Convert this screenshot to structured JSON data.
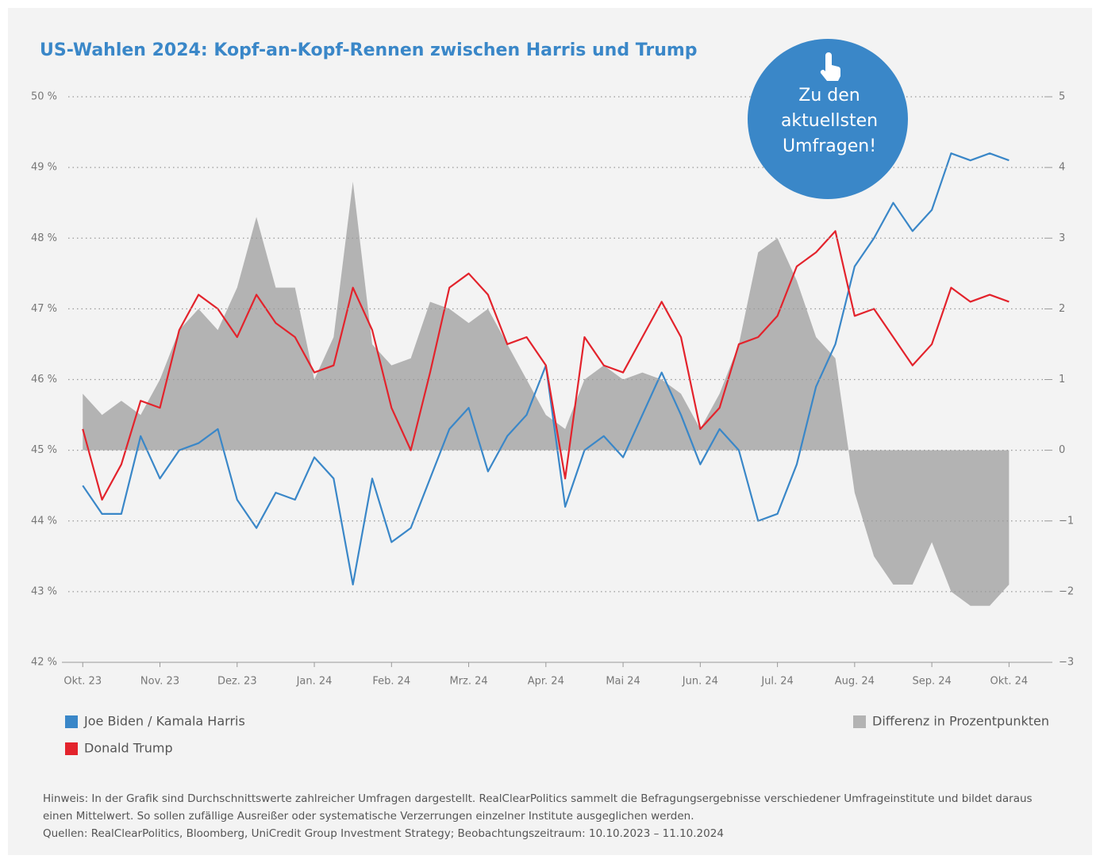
{
  "chart_data": {
    "type": "line",
    "title": "US-Wahlen 2024: Kopf-an-Kopf-Rennen zwischen Harris und Trump",
    "button_lines": [
      "Zu den",
      "aktuellsten",
      "Umfragen!"
    ],
    "x": [
      0,
      0.25,
      0.5,
      0.75,
      1,
      1.25,
      1.5,
      1.75,
      2,
      2.25,
      2.5,
      2.75,
      3,
      3.25,
      3.5,
      3.75,
      4,
      4.25,
      4.5,
      4.75,
      5,
      5.25,
      5.5,
      5.75,
      6,
      6.25,
      6.5,
      6.75,
      7,
      7.25,
      7.5,
      7.75,
      8,
      8.25,
      8.5,
      8.75,
      9,
      9.25,
      9.5,
      9.75,
      10,
      10.25,
      10.5,
      10.75,
      11,
      11.25,
      11.5,
      11.75,
      12
    ],
    "xlim": [
      -0.27,
      12.5
    ],
    "xticks": [
      {
        "value": 0,
        "label": "Okt. 23"
      },
      {
        "value": 1,
        "label": "Nov. 23"
      },
      {
        "value": 2,
        "label": "Dez. 23"
      },
      {
        "value": 3,
        "label": "Jan. 24"
      },
      {
        "value": 4,
        "label": "Feb. 24"
      },
      {
        "value": 5,
        "label": "Mrz. 24"
      },
      {
        "value": 6,
        "label": "Apr. 24"
      },
      {
        "value": 7,
        "label": "Mai 24"
      },
      {
        "value": 8,
        "label": "Jun. 24"
      },
      {
        "value": 9,
        "label": "Jul. 24"
      },
      {
        "value": 10,
        "label": "Aug. 24"
      },
      {
        "value": 11,
        "label": "Sep. 24"
      },
      {
        "value": 12,
        "label": "Okt. 24"
      }
    ],
    "ylim": [
      42,
      50
    ],
    "yticks": [
      {
        "value": 42,
        "label": "42 %"
      },
      {
        "value": 43,
        "label": "43 %"
      },
      {
        "value": 44,
        "label": "44 %"
      },
      {
        "value": 45,
        "label": "45 %"
      },
      {
        "value": 46,
        "label": "46 %"
      },
      {
        "value": 47,
        "label": "47 %"
      },
      {
        "value": 48,
        "label": "48 %"
      },
      {
        "value": 49,
        "label": "49 %"
      },
      {
        "value": 50,
        "label": "50 %"
      }
    ],
    "y2lim": [
      -3,
      5
    ],
    "y2ticks": [
      {
        "value": -3,
        "label": "−3"
      },
      {
        "value": -2,
        "label": "−2"
      },
      {
        "value": -1,
        "label": "−1"
      },
      0,
      1,
      2,
      3,
      4,
      5
    ],
    "grid": true,
    "series": [
      {
        "name": "Differenz in Prozentpunkten",
        "color": "#b3b3b3",
        "axis": "y2",
        "kind": "area",
        "values": [
          0.8,
          0.5,
          0.7,
          0.5,
          1.0,
          1.7,
          2.0,
          1.7,
          2.3,
          3.3,
          2.3,
          2.3,
          1.0,
          1.6,
          3.8,
          1.5,
          1.2,
          1.3,
          2.1,
          2.0,
          1.8,
          2.0,
          1.5,
          1.0,
          0.5,
          0.3,
          1.0,
          1.2,
          1.0,
          1.1,
          1.0,
          0.8,
          0.3,
          0.8,
          1.5,
          2.8,
          3.0,
          2.4,
          1.6,
          1.3,
          -0.6,
          -1.5,
          -1.9,
          -1.9,
          -1.3,
          -2.0,
          -2.2,
          -2.2,
          -1.9
        ]
      },
      {
        "name": "Joe Biden / Kamala Harris",
        "color": "#3a87c8",
        "values": [
          44.5,
          44.1,
          44.1,
          45.2,
          44.6,
          45.0,
          45.1,
          45.3,
          44.3,
          43.9,
          44.4,
          44.3,
          44.9,
          44.6,
          43.1,
          44.6,
          43.7,
          43.9,
          44.6,
          45.3,
          45.6,
          44.7,
          45.2,
          45.5,
          46.2,
          44.2,
          45.0,
          45.2,
          44.9,
          45.5,
          46.1,
          45.5,
          44.8,
          45.3,
          45.0,
          44.0,
          44.1,
          44.8,
          45.9,
          46.5,
          47.6,
          48.0,
          48.5,
          48.1,
          48.4,
          49.2,
          49.1,
          49.2,
          49.1
        ]
      },
      {
        "name": "Donald Trump",
        "color": "#e3232c",
        "values": [
          45.3,
          44.3,
          44.8,
          45.7,
          45.6,
          46.7,
          47.2,
          47.0,
          46.6,
          47.2,
          46.8,
          46.6,
          46.1,
          46.2,
          47.3,
          46.7,
          45.6,
          45.0,
          46.1,
          47.3,
          47.5,
          47.2,
          46.5,
          46.6,
          46.2,
          44.6,
          46.6,
          46.2,
          46.1,
          46.6,
          47.1,
          46.6,
          45.3,
          45.6,
          46.5,
          46.6,
          46.9,
          47.6,
          47.8,
          48.1,
          46.9,
          47.0,
          46.6,
          46.2,
          46.5,
          47.3,
          47.1,
          47.2,
          47.1
        ]
      }
    ],
    "notes": [
      "Hinweis: In der Grafik sind Durchschnittswerte zahlreicher Umfragen dargestellt. RealClearPolitics sammelt die Befragungsergebnisse verschiedener Umfrageinstitute und bildet daraus einen Mittelwert. So sollen zufällige Ausreißer oder systematische Verzerrungen einzelner Institute ausgeglichen werden.",
      "Quellen: RealClearPolitics, Bloomberg, UniCredit Group Investment Strategy; Beobachtungszeitraum: 10.10.2023 – 11.10.2024"
    ]
  }
}
